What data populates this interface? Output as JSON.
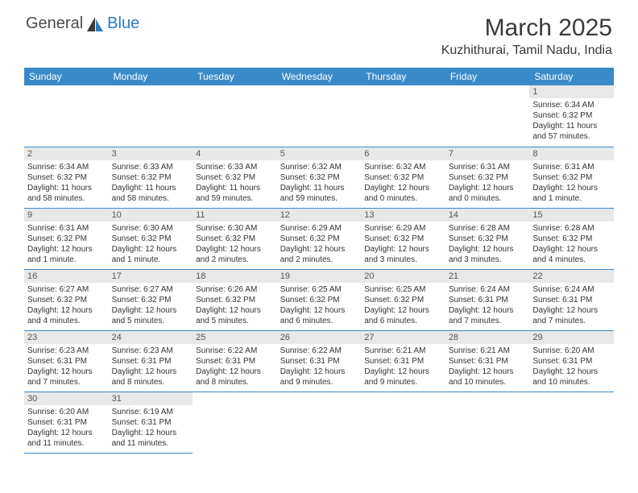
{
  "logo": {
    "text1": "General",
    "text2": "Blue"
  },
  "title": "March 2025",
  "location": "Kuzhithurai, Tamil Nadu, India",
  "columns": [
    "Sunday",
    "Monday",
    "Tuesday",
    "Wednesday",
    "Thursday",
    "Friday",
    "Saturday"
  ],
  "colors": {
    "header_bg": "#3a8ac9",
    "header_text": "#ffffff",
    "daynum_bg": "#e8e8e8",
    "cell_border": "#3a8ac9",
    "logo_blue": "#2a7cc7",
    "text": "#3a3a3a"
  },
  "first_day_col": 6,
  "days": [
    {
      "n": 1,
      "sunrise": "6:34 AM",
      "sunset": "6:32 PM",
      "daylight": "11 hours and 57 minutes."
    },
    {
      "n": 2,
      "sunrise": "6:34 AM",
      "sunset": "6:32 PM",
      "daylight": "11 hours and 58 minutes."
    },
    {
      "n": 3,
      "sunrise": "6:33 AM",
      "sunset": "6:32 PM",
      "daylight": "11 hours and 58 minutes."
    },
    {
      "n": 4,
      "sunrise": "6:33 AM",
      "sunset": "6:32 PM",
      "daylight": "11 hours and 59 minutes."
    },
    {
      "n": 5,
      "sunrise": "6:32 AM",
      "sunset": "6:32 PM",
      "daylight": "11 hours and 59 minutes."
    },
    {
      "n": 6,
      "sunrise": "6:32 AM",
      "sunset": "6:32 PM",
      "daylight": "12 hours and 0 minutes."
    },
    {
      "n": 7,
      "sunrise": "6:31 AM",
      "sunset": "6:32 PM",
      "daylight": "12 hours and 0 minutes."
    },
    {
      "n": 8,
      "sunrise": "6:31 AM",
      "sunset": "6:32 PM",
      "daylight": "12 hours and 1 minute."
    },
    {
      "n": 9,
      "sunrise": "6:31 AM",
      "sunset": "6:32 PM",
      "daylight": "12 hours and 1 minute."
    },
    {
      "n": 10,
      "sunrise": "6:30 AM",
      "sunset": "6:32 PM",
      "daylight": "12 hours and 1 minute."
    },
    {
      "n": 11,
      "sunrise": "6:30 AM",
      "sunset": "6:32 PM",
      "daylight": "12 hours and 2 minutes."
    },
    {
      "n": 12,
      "sunrise": "6:29 AM",
      "sunset": "6:32 PM",
      "daylight": "12 hours and 2 minutes."
    },
    {
      "n": 13,
      "sunrise": "6:29 AM",
      "sunset": "6:32 PM",
      "daylight": "12 hours and 3 minutes."
    },
    {
      "n": 14,
      "sunrise": "6:28 AM",
      "sunset": "6:32 PM",
      "daylight": "12 hours and 3 minutes."
    },
    {
      "n": 15,
      "sunrise": "6:28 AM",
      "sunset": "6:32 PM",
      "daylight": "12 hours and 4 minutes."
    },
    {
      "n": 16,
      "sunrise": "6:27 AM",
      "sunset": "6:32 PM",
      "daylight": "12 hours and 4 minutes."
    },
    {
      "n": 17,
      "sunrise": "6:27 AM",
      "sunset": "6:32 PM",
      "daylight": "12 hours and 5 minutes."
    },
    {
      "n": 18,
      "sunrise": "6:26 AM",
      "sunset": "6:32 PM",
      "daylight": "12 hours and 5 minutes."
    },
    {
      "n": 19,
      "sunrise": "6:25 AM",
      "sunset": "6:32 PM",
      "daylight": "12 hours and 6 minutes."
    },
    {
      "n": 20,
      "sunrise": "6:25 AM",
      "sunset": "6:32 PM",
      "daylight": "12 hours and 6 minutes."
    },
    {
      "n": 21,
      "sunrise": "6:24 AM",
      "sunset": "6:31 PM",
      "daylight": "12 hours and 7 minutes."
    },
    {
      "n": 22,
      "sunrise": "6:24 AM",
      "sunset": "6:31 PM",
      "daylight": "12 hours and 7 minutes."
    },
    {
      "n": 23,
      "sunrise": "6:23 AM",
      "sunset": "6:31 PM",
      "daylight": "12 hours and 7 minutes."
    },
    {
      "n": 24,
      "sunrise": "6:23 AM",
      "sunset": "6:31 PM",
      "daylight": "12 hours and 8 minutes."
    },
    {
      "n": 25,
      "sunrise": "6:22 AM",
      "sunset": "6:31 PM",
      "daylight": "12 hours and 8 minutes."
    },
    {
      "n": 26,
      "sunrise": "6:22 AM",
      "sunset": "6:31 PM",
      "daylight": "12 hours and 9 minutes."
    },
    {
      "n": 27,
      "sunrise": "6:21 AM",
      "sunset": "6:31 PM",
      "daylight": "12 hours and 9 minutes."
    },
    {
      "n": 28,
      "sunrise": "6:21 AM",
      "sunset": "6:31 PM",
      "daylight": "12 hours and 10 minutes."
    },
    {
      "n": 29,
      "sunrise": "6:20 AM",
      "sunset": "6:31 PM",
      "daylight": "12 hours and 10 minutes."
    },
    {
      "n": 30,
      "sunrise": "6:20 AM",
      "sunset": "6:31 PM",
      "daylight": "12 hours and 11 minutes."
    },
    {
      "n": 31,
      "sunrise": "6:19 AM",
      "sunset": "6:31 PM",
      "daylight": "12 hours and 11 minutes."
    }
  ],
  "labels": {
    "sunrise": "Sunrise:",
    "sunset": "Sunset:",
    "daylight": "Daylight:"
  }
}
